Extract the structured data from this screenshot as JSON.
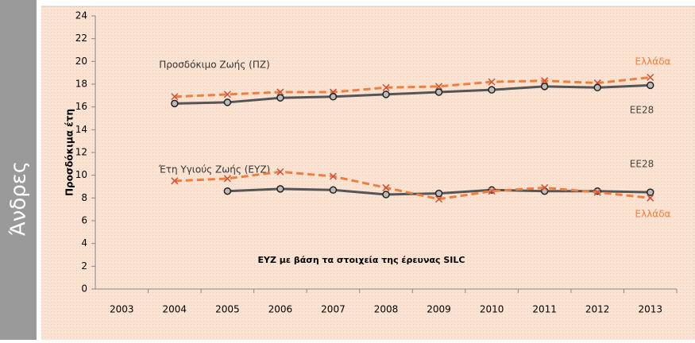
{
  "side_label": "Άνδρες",
  "chart_data": {
    "type": "line",
    "y_label": "Προσδόκιμα έτη",
    "categories": [
      "2003",
      "2004",
      "2005",
      "2006",
      "2007",
      "2008",
      "2009",
      "2010",
      "2011",
      "2012",
      "2013"
    ],
    "ylim": [
      0,
      24
    ],
    "yticks": [
      0,
      2,
      4,
      6,
      8,
      10,
      12,
      14,
      16,
      18,
      20,
      22,
      24
    ],
    "grid": false,
    "annotations": [
      "Προσδόκιμο Ζωής (ΠΖ)",
      "Έτη Υγιούς Ζωής (ΕΥΖ)",
      "ΕΥΖ με βάση τα στοιχεία της έρευνας SILC"
    ],
    "series": [
      {
        "name": "Ελλάδα",
        "color": "#f07f3c",
        "dash": true,
        "marker": "x",
        "values": [
          null,
          16.9,
          17.1,
          17.3,
          17.3,
          17.7,
          17.8,
          18.2,
          18.3,
          18.1,
          18.6
        ]
      },
      {
        "name": "ΕΕ28",
        "color": "#555555",
        "dash": false,
        "marker": "circle",
        "values": [
          null,
          16.3,
          16.4,
          16.8,
          16.9,
          17.1,
          17.3,
          17.5,
          17.8,
          17.7,
          17.9
        ]
      },
      {
        "name": "ΕΕ28",
        "color": "#555555",
        "dash": false,
        "marker": "circle",
        "values": [
          null,
          null,
          8.6,
          8.8,
          8.7,
          8.3,
          8.4,
          8.7,
          8.6,
          8.6,
          8.5
        ]
      },
      {
        "name": "Ελλάδα",
        "color": "#f07f3c",
        "dash": true,
        "marker": "x",
        "values": [
          null,
          9.5,
          9.7,
          10.3,
          9.9,
          8.9,
          7.9,
          8.6,
          8.9,
          8.5,
          8.0
        ]
      }
    ]
  }
}
